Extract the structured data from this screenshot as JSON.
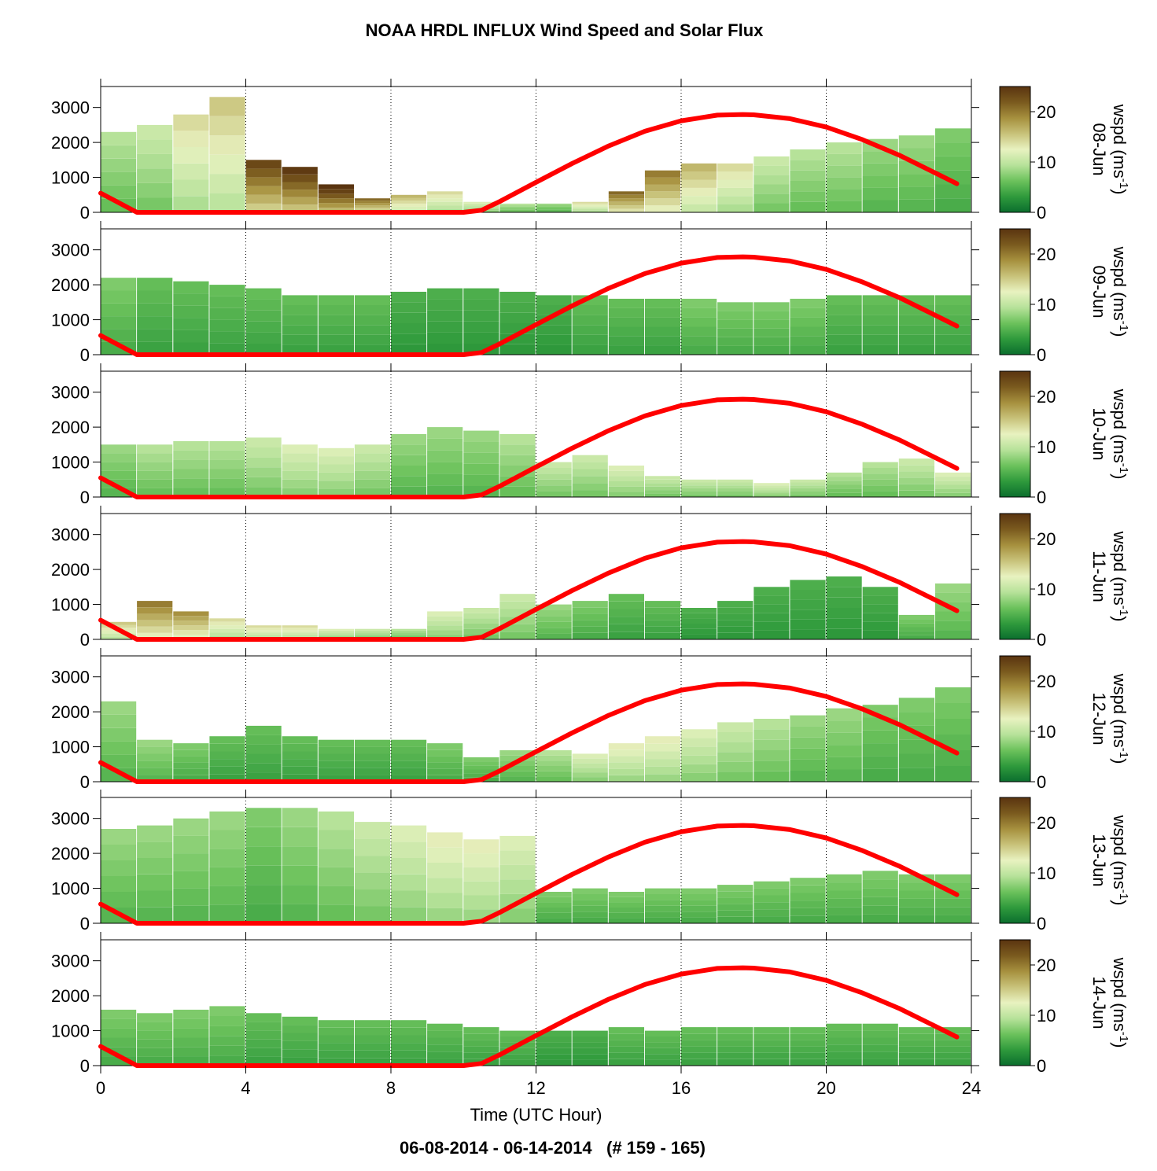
{
  "title": "NOAA HRDL INFLUX Wind Speed and Solar Flux",
  "subtitle": "06-08-2014 - 06-14-2014   (# 159 - 165)",
  "chart_data": {
    "type": "heatmap",
    "title": "NOAA HRDL INFLUX Wind Speed and Solar Flux",
    "xlabel": "Time (UTC Hour)",
    "xlim": [
      0,
      24
    ],
    "xticks": [
      0,
      4,
      8,
      12,
      16,
      20,
      24
    ],
    "ylim": [
      0,
      3600
    ],
    "yticks": [
      0,
      1000,
      2000,
      3000
    ],
    "grid": "vertical dotted lines at 4, 8, 12, 16, 20, 24",
    "colorbar": {
      "label": "wspd (ms-1)",
      "label_main": "wspd (ms",
      "label_exp": "-1",
      "label_close": ")",
      "range": [
        0,
        25
      ],
      "ticks": [
        0,
        10,
        20
      ],
      "colors": [
        "#0b6e2e",
        "#2f9a3c",
        "#6cc25c",
        "#b7e29a",
        "#e8f2c0",
        "#c8c27a",
        "#a6903e",
        "#7a5a1e",
        "#5a3410"
      ]
    },
    "solar_flux": {
      "color": "#ff0000",
      "hours": [
        0,
        1,
        2,
        3,
        4,
        5,
        6,
        7,
        8,
        9,
        10,
        10.5,
        11,
        12,
        13,
        14,
        15,
        16,
        17,
        17.7,
        18,
        19,
        20,
        21,
        22,
        23,
        23.6
      ],
      "values": [
        550,
        0,
        0,
        0,
        0,
        0,
        0,
        0,
        0,
        0,
        0,
        60,
        310,
        860,
        1400,
        1900,
        2320,
        2620,
        2780,
        2800,
        2790,
        2680,
        2440,
        2080,
        1640,
        1130,
        820
      ]
    },
    "panels": [
      {
        "date": "08-Jun",
        "profile": [
          {
            "hour": 0,
            "top": 2300,
            "speed": 8
          },
          {
            "hour": 1,
            "top": 2500,
            "speed": 9
          },
          {
            "hour": 2,
            "top": 2800,
            "speed": 12
          },
          {
            "hour": 3,
            "top": 3300,
            "speed": 13
          },
          {
            "hour": 4,
            "top": 1500,
            "speed": 20
          },
          {
            "hour": 5,
            "top": 1300,
            "speed": 21
          },
          {
            "hour": 6,
            "top": 800,
            "speed": 22
          },
          {
            "hour": 7,
            "top": 400,
            "speed": 18
          },
          {
            "hour": 8,
            "top": 500,
            "speed": 14
          },
          {
            "hour": 9,
            "top": 600,
            "speed": 12
          },
          {
            "hour": 10,
            "top": 300,
            "speed": 10
          },
          {
            "hour": 11,
            "top": 250,
            "speed": 8
          },
          {
            "hour": 12,
            "top": 250,
            "speed": 7
          },
          {
            "hour": 13,
            "top": 300,
            "speed": 12
          },
          {
            "hour": 14,
            "top": 600,
            "speed": 18
          },
          {
            "hour": 15,
            "top": 1200,
            "speed": 17
          },
          {
            "hour": 16,
            "top": 1400,
            "speed": 14
          },
          {
            "hour": 17,
            "top": 1400,
            "speed": 12
          },
          {
            "hour": 18,
            "top": 1600,
            "speed": 9
          },
          {
            "hour": 19,
            "top": 1800,
            "speed": 8
          },
          {
            "hour": 20,
            "top": 2000,
            "speed": 8
          },
          {
            "hour": 21,
            "top": 2100,
            "speed": 7
          },
          {
            "hour": 22,
            "top": 2200,
            "speed": 7
          },
          {
            "hour": 23,
            "top": 2400,
            "speed": 6
          }
        ]
      },
      {
        "date": "09-Jun",
        "profile": [
          {
            "hour": 0,
            "top": 2200,
            "speed": 6
          },
          {
            "hour": 1,
            "top": 2200,
            "speed": 5
          },
          {
            "hour": 2,
            "top": 2100,
            "speed": 5
          },
          {
            "hour": 3,
            "top": 2000,
            "speed": 5
          },
          {
            "hour": 4,
            "top": 1900,
            "speed": 5
          },
          {
            "hour": 5,
            "top": 1700,
            "speed": 5
          },
          {
            "hour": 6,
            "top": 1700,
            "speed": 5
          },
          {
            "hour": 7,
            "top": 1700,
            "speed": 5
          },
          {
            "hour": 8,
            "top": 1800,
            "speed": 4
          },
          {
            "hour": 9,
            "top": 1900,
            "speed": 4
          },
          {
            "hour": 10,
            "top": 1900,
            "speed": 4
          },
          {
            "hour": 11,
            "top": 1800,
            "speed": 4
          },
          {
            "hour": 12,
            "top": 1700,
            "speed": 4
          },
          {
            "hour": 13,
            "top": 1700,
            "speed": 5
          },
          {
            "hour": 14,
            "top": 1600,
            "speed": 5
          },
          {
            "hour": 15,
            "top": 1600,
            "speed": 5
          },
          {
            "hour": 16,
            "top": 1600,
            "speed": 6
          },
          {
            "hour": 17,
            "top": 1500,
            "speed": 6
          },
          {
            "hour": 18,
            "top": 1500,
            "speed": 6
          },
          {
            "hour": 19,
            "top": 1600,
            "speed": 6
          },
          {
            "hour": 20,
            "top": 1700,
            "speed": 5
          },
          {
            "hour": 21,
            "top": 1700,
            "speed": 5
          },
          {
            "hour": 22,
            "top": 1700,
            "speed": 5
          },
          {
            "hour": 23,
            "top": 1700,
            "speed": 5
          }
        ]
      },
      {
        "date": "10-Jun",
        "profile": [
          {
            "hour": 0,
            "top": 1500,
            "speed": 7
          },
          {
            "hour": 1,
            "top": 1500,
            "speed": 8
          },
          {
            "hour": 2,
            "top": 1600,
            "speed": 8
          },
          {
            "hour": 3,
            "top": 1600,
            "speed": 8
          },
          {
            "hour": 4,
            "top": 1700,
            "speed": 9
          },
          {
            "hour": 5,
            "top": 1500,
            "speed": 10
          },
          {
            "hour": 6,
            "top": 1400,
            "speed": 10
          },
          {
            "hour": 7,
            "top": 1500,
            "speed": 9
          },
          {
            "hour": 8,
            "top": 1800,
            "speed": 7
          },
          {
            "hour": 9,
            "top": 2000,
            "speed": 7
          },
          {
            "hour": 10,
            "top": 1900,
            "speed": 7
          },
          {
            "hour": 11,
            "top": 1800,
            "speed": 8
          },
          {
            "hour": 12,
            "top": 1000,
            "speed": 9
          },
          {
            "hour": 13,
            "top": 1200,
            "speed": 9
          },
          {
            "hour": 14,
            "top": 900,
            "speed": 10
          },
          {
            "hour": 15,
            "top": 600,
            "speed": 9
          },
          {
            "hour": 16,
            "top": 500,
            "speed": 9
          },
          {
            "hour": 17,
            "top": 500,
            "speed": 9
          },
          {
            "hour": 18,
            "top": 400,
            "speed": 10
          },
          {
            "hour": 19,
            "top": 500,
            "speed": 9
          },
          {
            "hour": 20,
            "top": 700,
            "speed": 8
          },
          {
            "hour": 21,
            "top": 1000,
            "speed": 8
          },
          {
            "hour": 22,
            "top": 1100,
            "speed": 9
          },
          {
            "hour": 23,
            "top": 700,
            "speed": 10
          }
        ]
      },
      {
        "date": "11-Jun",
        "profile": [
          {
            "hour": 0,
            "top": 500,
            "speed": 13
          },
          {
            "hour": 1,
            "top": 1100,
            "speed": 17
          },
          {
            "hour": 2,
            "top": 800,
            "speed": 16
          },
          {
            "hour": 3,
            "top": 600,
            "speed": 12
          },
          {
            "hour": 4,
            "top": 400,
            "speed": 12
          },
          {
            "hour": 5,
            "top": 400,
            "speed": 12
          },
          {
            "hour": 6,
            "top": 300,
            "speed": 10
          },
          {
            "hour": 7,
            "top": 300,
            "speed": 9
          },
          {
            "hour": 8,
            "top": 300,
            "speed": 8
          },
          {
            "hour": 9,
            "top": 800,
            "speed": 10
          },
          {
            "hour": 10,
            "top": 900,
            "speed": 9
          },
          {
            "hour": 11,
            "top": 1300,
            "speed": 9
          },
          {
            "hour": 12,
            "top": 1000,
            "speed": 7
          },
          {
            "hour": 13,
            "top": 1100,
            "speed": 6
          },
          {
            "hour": 14,
            "top": 1300,
            "speed": 5
          },
          {
            "hour": 15,
            "top": 1100,
            "speed": 5
          },
          {
            "hour": 16,
            "top": 900,
            "speed": 4
          },
          {
            "hour": 17,
            "top": 1100,
            "speed": 4
          },
          {
            "hour": 18,
            "top": 1500,
            "speed": 4
          },
          {
            "hour": 19,
            "top": 1700,
            "speed": 4
          },
          {
            "hour": 20,
            "top": 1800,
            "speed": 4
          },
          {
            "hour": 21,
            "top": 1500,
            "speed": 4
          },
          {
            "hour": 22,
            "top": 700,
            "speed": 6
          },
          {
            "hour": 23,
            "top": 1600,
            "speed": 7
          }
        ]
      },
      {
        "date": "12-Jun",
        "profile": [
          {
            "hour": 0,
            "top": 2300,
            "speed": 7
          },
          {
            "hour": 1,
            "top": 1200,
            "speed": 7
          },
          {
            "hour": 2,
            "top": 1100,
            "speed": 6
          },
          {
            "hour": 3,
            "top": 1300,
            "speed": 5
          },
          {
            "hour": 4,
            "top": 1600,
            "speed": 5
          },
          {
            "hour": 5,
            "top": 1300,
            "speed": 5
          },
          {
            "hour": 6,
            "top": 1200,
            "speed": 5
          },
          {
            "hour": 7,
            "top": 1200,
            "speed": 5
          },
          {
            "hour": 8,
            "top": 1200,
            "speed": 5
          },
          {
            "hour": 9,
            "top": 1100,
            "speed": 6
          },
          {
            "hour": 10,
            "top": 700,
            "speed": 6
          },
          {
            "hour": 11,
            "top": 900,
            "speed": 7
          },
          {
            "hour": 12,
            "top": 900,
            "speed": 8
          },
          {
            "hour": 13,
            "top": 800,
            "speed": 10
          },
          {
            "hour": 14,
            "top": 1100,
            "speed": 11
          },
          {
            "hour": 15,
            "top": 1300,
            "speed": 11
          },
          {
            "hour": 16,
            "top": 1500,
            "speed": 10
          },
          {
            "hour": 17,
            "top": 1700,
            "speed": 9
          },
          {
            "hour": 18,
            "top": 1800,
            "speed": 8
          },
          {
            "hour": 19,
            "top": 1900,
            "speed": 7
          },
          {
            "hour": 20,
            "top": 2100,
            "speed": 7
          },
          {
            "hour": 21,
            "top": 2200,
            "speed": 6
          },
          {
            "hour": 22,
            "top": 2400,
            "speed": 6
          },
          {
            "hour": 23,
            "top": 2700,
            "speed": 6
          }
        ]
      },
      {
        "date": "13-Jun",
        "profile": [
          {
            "hour": 0,
            "top": 2700,
            "speed": 7
          },
          {
            "hour": 1,
            "top": 2800,
            "speed": 7
          },
          {
            "hour": 2,
            "top": 3000,
            "speed": 7
          },
          {
            "hour": 3,
            "top": 3200,
            "speed": 7
          },
          {
            "hour": 4,
            "top": 3300,
            "speed": 6
          },
          {
            "hour": 5,
            "top": 3300,
            "speed": 7
          },
          {
            "hour": 6,
            "top": 3200,
            "speed": 8
          },
          {
            "hour": 7,
            "top": 2900,
            "speed": 9
          },
          {
            "hour": 8,
            "top": 2800,
            "speed": 10
          },
          {
            "hour": 9,
            "top": 2600,
            "speed": 11
          },
          {
            "hour": 10,
            "top": 2400,
            "speed": 11
          },
          {
            "hour": 11,
            "top": 2500,
            "speed": 10
          },
          {
            "hour": 12,
            "top": 900,
            "speed": 6
          },
          {
            "hour": 13,
            "top": 1000,
            "speed": 6
          },
          {
            "hour": 14,
            "top": 900,
            "speed": 6
          },
          {
            "hour": 15,
            "top": 1000,
            "speed": 6
          },
          {
            "hour": 16,
            "top": 1000,
            "speed": 6
          },
          {
            "hour": 17,
            "top": 1100,
            "speed": 6
          },
          {
            "hour": 18,
            "top": 1200,
            "speed": 6
          },
          {
            "hour": 19,
            "top": 1300,
            "speed": 6
          },
          {
            "hour": 20,
            "top": 1400,
            "speed": 6
          },
          {
            "hour": 21,
            "top": 1500,
            "speed": 6
          },
          {
            "hour": 22,
            "top": 1400,
            "speed": 6
          },
          {
            "hour": 23,
            "top": 1400,
            "speed": 6
          }
        ]
      },
      {
        "date": "14-Jun",
        "profile": [
          {
            "hour": 0,
            "top": 1600,
            "speed": 6
          },
          {
            "hour": 1,
            "top": 1500,
            "speed": 6
          },
          {
            "hour": 2,
            "top": 1600,
            "speed": 6
          },
          {
            "hour": 3,
            "top": 1700,
            "speed": 6
          },
          {
            "hour": 4,
            "top": 1500,
            "speed": 5
          },
          {
            "hour": 5,
            "top": 1400,
            "speed": 5
          },
          {
            "hour": 6,
            "top": 1300,
            "speed": 5
          },
          {
            "hour": 7,
            "top": 1300,
            "speed": 5
          },
          {
            "hour": 8,
            "top": 1300,
            "speed": 5
          },
          {
            "hour": 9,
            "top": 1200,
            "speed": 5
          },
          {
            "hour": 10,
            "top": 1100,
            "speed": 5
          },
          {
            "hour": 11,
            "top": 1000,
            "speed": 5
          },
          {
            "hour": 12,
            "top": 1000,
            "speed": 4
          },
          {
            "hour": 13,
            "top": 1000,
            "speed": 4
          },
          {
            "hour": 14,
            "top": 1100,
            "speed": 5
          },
          {
            "hour": 15,
            "top": 1000,
            "speed": 5
          },
          {
            "hour": 16,
            "top": 1100,
            "speed": 5
          },
          {
            "hour": 17,
            "top": 1100,
            "speed": 5
          },
          {
            "hour": 18,
            "top": 1100,
            "speed": 5
          },
          {
            "hour": 19,
            "top": 1100,
            "speed": 5
          },
          {
            "hour": 20,
            "top": 1200,
            "speed": 5
          },
          {
            "hour": 21,
            "top": 1200,
            "speed": 5
          },
          {
            "hour": 22,
            "top": 1100,
            "speed": 5
          },
          {
            "hour": 23,
            "top": 1100,
            "speed": 5
          }
        ]
      }
    ]
  }
}
